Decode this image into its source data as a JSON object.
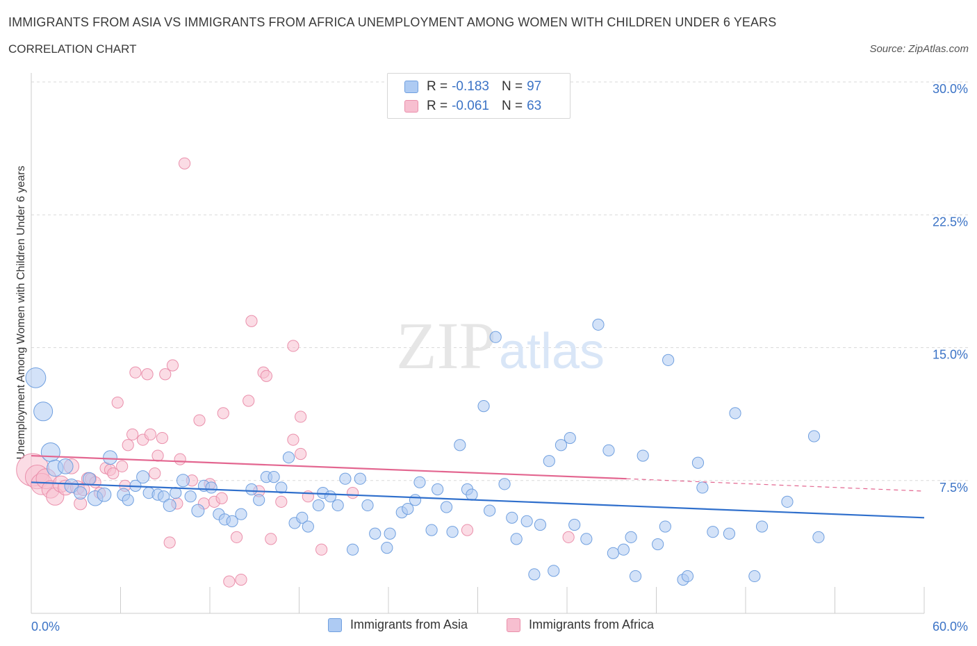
{
  "header": {
    "title": "IMMIGRANTS FROM ASIA VS IMMIGRANTS FROM AFRICA UNEMPLOYMENT AMONG WOMEN WITH CHILDREN UNDER 6 YEARS",
    "subtitle": "CORRELATION CHART",
    "source": "Source: ZipAtlas.com"
  },
  "watermark": {
    "zip": "ZIP",
    "atlas": "atlas"
  },
  "legend": {
    "asia": {
      "r_label": "R =",
      "r_value": "-0.183",
      "n_label": "N =",
      "n_value": "97"
    },
    "africa": {
      "r_label": "R =",
      "r_value": "-0.061",
      "n_label": "N =",
      "n_value": "63"
    }
  },
  "colors": {
    "asia_fill": "#aecbf3",
    "asia_stroke": "#6f9fdf",
    "asia_line": "#2f6fcc",
    "africa_fill": "#f7bfd0",
    "africa_stroke": "#ea8fab",
    "africa_line": "#e36690",
    "axis_text": "#3b73c6",
    "grid": "#d9d9d9"
  },
  "chart_data": {
    "type": "scatter",
    "title": "IMMIGRANTS FROM ASIA VS IMMIGRANTS FROM AFRICA UNEMPLOYMENT AMONG WOMEN WITH CHILDREN UNDER 6 YEARS",
    "xlabel": "",
    "ylabel": "Unemployment Among Women with Children Under 6 years",
    "xlim": [
      0,
      60
    ],
    "ylim": [
      0,
      30
    ],
    "x_tick_labels": [
      "0.0%",
      "60.0%"
    ],
    "y_ticks": [
      {
        "value": 7.5,
        "label": "7.5%"
      },
      {
        "value": 15.0,
        "label": "15.0%"
      },
      {
        "value": 22.5,
        "label": "22.5%"
      },
      {
        "value": 30.0,
        "label": "30.0%"
      }
    ],
    "grid": "horizontal dashed",
    "legend_placement": "bottom",
    "series": [
      {
        "name": "Immigrants from Asia",
        "color": "#aecbf3",
        "trend": {
          "x": [
            0,
            60
          ],
          "y": [
            7.4,
            5.4
          ]
        },
        "points": [
          [
            0.3,
            13.3,
            1.6
          ],
          [
            0.8,
            11.4,
            1.5
          ],
          [
            1.3,
            9.1,
            1.5
          ],
          [
            1.6,
            8.2,
            1.3
          ],
          [
            2.3,
            8.3,
            1.2
          ],
          [
            2.7,
            7.2,
            1.1
          ],
          [
            3.3,
            6.8,
            1.0
          ],
          [
            3.9,
            7.6,
            1.0
          ],
          [
            4.3,
            6.5,
            1.2
          ],
          [
            4.9,
            6.7,
            1.1
          ],
          [
            5.3,
            8.8,
            1.1
          ],
          [
            6.2,
            6.7,
            1.0
          ],
          [
            6.5,
            6.4,
            0.9
          ],
          [
            7.0,
            7.2,
            0.9
          ],
          [
            7.5,
            7.7,
            1.0
          ],
          [
            7.9,
            6.8,
            0.9
          ],
          [
            8.5,
            6.7,
            0.9
          ],
          [
            8.9,
            6.6,
            0.9
          ],
          [
            9.3,
            6.1,
            1.0
          ],
          [
            9.7,
            6.8,
            0.9
          ],
          [
            10.2,
            7.5,
            1.0
          ],
          [
            10.7,
            6.6,
            0.9
          ],
          [
            11.2,
            5.8,
            1.0
          ],
          [
            11.6,
            7.2,
            0.9
          ],
          [
            12.1,
            7.1,
            0.9
          ],
          [
            12.6,
            5.6,
            0.9
          ],
          [
            13.0,
            5.3,
            0.9
          ],
          [
            13.5,
            5.2,
            0.9
          ],
          [
            14.1,
            5.6,
            0.9
          ],
          [
            14.8,
            7.0,
            0.9
          ],
          [
            15.3,
            6.4,
            0.9
          ],
          [
            15.8,
            7.7,
            0.9
          ],
          [
            16.3,
            7.7,
            0.9
          ],
          [
            16.8,
            7.1,
            0.9
          ],
          [
            17.3,
            8.8,
            0.9
          ],
          [
            17.7,
            5.1,
            0.9
          ],
          [
            18.2,
            5.4,
            0.9
          ],
          [
            18.6,
            4.9,
            0.9
          ],
          [
            19.3,
            6.1,
            0.9
          ],
          [
            19.6,
            6.8,
            0.9
          ],
          [
            20.1,
            6.6,
            0.9
          ],
          [
            20.6,
            6.1,
            0.9
          ],
          [
            21.1,
            7.6,
            0.9
          ],
          [
            21.6,
            3.6,
            0.9
          ],
          [
            22.1,
            7.6,
            0.9
          ],
          [
            22.6,
            6.1,
            0.9
          ],
          [
            23.1,
            4.5,
            0.9
          ],
          [
            23.9,
            3.7,
            0.9
          ],
          [
            24.1,
            4.5,
            0.9
          ],
          [
            24.9,
            5.7,
            0.9
          ],
          [
            25.3,
            5.9,
            0.9
          ],
          [
            25.8,
            6.4,
            0.9
          ],
          [
            26.1,
            7.4,
            0.9
          ],
          [
            26.9,
            4.7,
            0.9
          ],
          [
            27.3,
            7.0,
            0.9
          ],
          [
            27.9,
            6.0,
            0.9
          ],
          [
            28.3,
            4.6,
            0.9
          ],
          [
            28.8,
            9.5,
            0.9
          ],
          [
            29.3,
            7.0,
            0.9
          ],
          [
            29.6,
            6.7,
            0.9
          ],
          [
            30.4,
            11.7,
            0.9
          ],
          [
            30.8,
            5.8,
            0.9
          ],
          [
            31.2,
            15.6,
            0.9
          ],
          [
            31.8,
            7.3,
            0.9
          ],
          [
            32.3,
            5.4,
            0.9
          ],
          [
            32.6,
            4.2,
            0.9
          ],
          [
            33.3,
            5.2,
            0.9
          ],
          [
            33.8,
            2.2,
            0.9
          ],
          [
            34.2,
            5.0,
            0.9
          ],
          [
            34.8,
            8.6,
            0.9
          ],
          [
            35.1,
            2.4,
            0.9
          ],
          [
            35.6,
            9.5,
            0.9
          ],
          [
            36.2,
            9.9,
            0.9
          ],
          [
            36.5,
            5.0,
            0.9
          ],
          [
            37.3,
            4.2,
            0.9
          ],
          [
            38.1,
            16.3,
            0.9
          ],
          [
            38.8,
            9.2,
            0.9
          ],
          [
            39.1,
            3.4,
            0.9
          ],
          [
            39.8,
            3.6,
            0.9
          ],
          [
            40.3,
            4.3,
            0.9
          ],
          [
            40.6,
            2.1,
            0.9
          ],
          [
            41.1,
            8.9,
            0.9
          ],
          [
            42.1,
            3.9,
            0.9
          ],
          [
            42.6,
            4.9,
            0.9
          ],
          [
            42.8,
            14.3,
            0.9
          ],
          [
            43.8,
            1.9,
            0.9
          ],
          [
            44.1,
            2.1,
            0.9
          ],
          [
            44.8,
            8.5,
            0.9
          ],
          [
            45.1,
            7.1,
            0.9
          ],
          [
            45.8,
            4.6,
            0.9
          ],
          [
            46.9,
            4.5,
            0.9
          ],
          [
            47.3,
            11.3,
            0.9
          ],
          [
            48.6,
            2.1,
            0.9
          ],
          [
            49.1,
            4.9,
            0.9
          ],
          [
            50.8,
            6.3,
            0.9
          ],
          [
            52.6,
            10.0,
            0.9
          ],
          [
            52.9,
            4.3,
            0.9
          ]
        ]
      },
      {
        "name": "Immigrants from Africa",
        "color": "#f7bfd0",
        "trend": {
          "x": [
            0,
            40
          ],
          "y": [
            8.9,
            7.6
          ],
          "dashed_to": {
            "x": 60,
            "y": 6.9
          }
        },
        "points": [
          [
            0.1,
            8.1,
            2.6
          ],
          [
            0.4,
            7.7,
            1.9
          ],
          [
            0.7,
            7.3,
            1.7
          ],
          [
            1.0,
            7.6,
            1.6
          ],
          [
            1.3,
            7.0,
            1.4
          ],
          [
            1.6,
            6.6,
            1.4
          ],
          [
            2.0,
            7.3,
            1.3
          ],
          [
            2.3,
            7.1,
            1.2
          ],
          [
            2.7,
            8.3,
            1.2
          ],
          [
            3.1,
            7.1,
            1.1
          ],
          [
            3.3,
            6.2,
            1.0
          ],
          [
            3.5,
            7.0,
            1.0
          ],
          [
            3.8,
            7.6,
            1.0
          ],
          [
            4.0,
            7.6,
            0.9
          ],
          [
            4.3,
            7.4,
            0.9
          ],
          [
            4.6,
            6.8,
            0.9
          ],
          [
            5.0,
            8.2,
            0.9
          ],
          [
            5.3,
            8.1,
            0.9
          ],
          [
            5.5,
            7.9,
            0.9
          ],
          [
            5.8,
            11.9,
            0.9
          ],
          [
            6.1,
            8.3,
            0.9
          ],
          [
            6.3,
            7.2,
            0.9
          ],
          [
            6.5,
            9.5,
            0.9
          ],
          [
            6.8,
            10.1,
            0.9
          ],
          [
            7.0,
            13.6,
            0.9
          ],
          [
            7.5,
            9.8,
            0.9
          ],
          [
            7.8,
            13.5,
            0.9
          ],
          [
            8.0,
            10.1,
            0.9
          ],
          [
            8.3,
            7.9,
            0.9
          ],
          [
            8.5,
            8.9,
            0.9
          ],
          [
            8.8,
            9.9,
            0.9
          ],
          [
            9.0,
            13.5,
            0.9
          ],
          [
            9.3,
            4.0,
            0.9
          ],
          [
            9.5,
            14.0,
            0.9
          ],
          [
            9.8,
            6.2,
            0.9
          ],
          [
            10.0,
            8.7,
            0.9
          ],
          [
            10.3,
            25.4,
            0.9
          ],
          [
            10.8,
            7.5,
            0.9
          ],
          [
            11.3,
            10.9,
            0.9
          ],
          [
            11.6,
            6.2,
            0.9
          ],
          [
            12.0,
            7.3,
            0.9
          ],
          [
            12.3,
            6.3,
            0.9
          ],
          [
            12.8,
            6.5,
            0.9
          ],
          [
            12.9,
            11.3,
            0.9
          ],
          [
            13.3,
            1.8,
            0.9
          ],
          [
            13.8,
            4.3,
            0.9
          ],
          [
            14.1,
            1.9,
            0.9
          ],
          [
            14.6,
            12.0,
            0.9
          ],
          [
            14.8,
            16.5,
            0.9
          ],
          [
            15.3,
            6.9,
            0.9
          ],
          [
            15.6,
            13.6,
            0.9
          ],
          [
            15.8,
            13.4,
            0.9
          ],
          [
            16.1,
            4.2,
            0.9
          ],
          [
            16.8,
            6.3,
            0.9
          ],
          [
            17.6,
            15.1,
            0.9
          ],
          [
            17.6,
            9.8,
            0.9
          ],
          [
            18.1,
            9.0,
            0.9
          ],
          [
            18.1,
            11.1,
            0.9
          ],
          [
            18.6,
            6.6,
            0.9
          ],
          [
            19.5,
            3.6,
            0.9
          ],
          [
            21.6,
            6.8,
            0.9
          ],
          [
            29.3,
            4.7,
            0.9
          ],
          [
            36.1,
            4.3,
            0.9
          ]
        ]
      }
    ]
  },
  "bottom_legend": {
    "asia": "Immigrants from Asia",
    "africa": "Immigrants from Africa"
  }
}
